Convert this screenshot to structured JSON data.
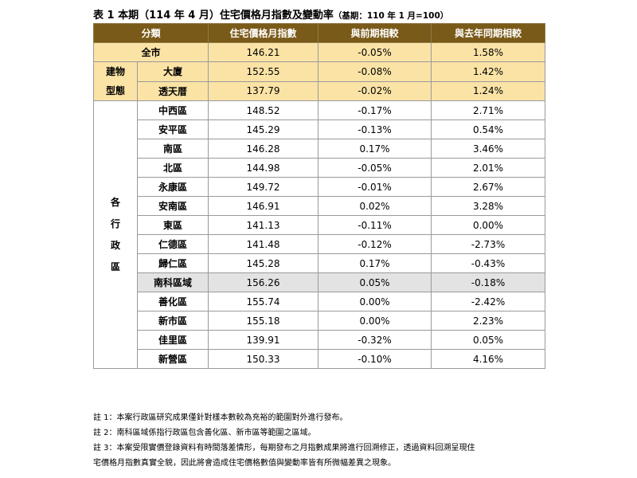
{
  "title": "表 1 本期（114 年 4 月）住宅價格月指數及變動率",
  "title_sub": "（基期：110 年 1 月=100）",
  "headers": [
    "分類",
    "住宅價格月指數",
    "與前期相較",
    "與去年同期相較"
  ],
  "overall": {
    "label": "全市",
    "index": "146.21",
    "mom": "-0.05%",
    "yoy": "1.58%"
  },
  "building_group": "建物\n型態",
  "building": [
    {
      "label": "大廈",
      "index": "152.55",
      "mom": "-0.08%",
      "yoy": "1.42%"
    },
    {
      "label": "透天厝",
      "index": "137.79",
      "mom": "-0.02%",
      "yoy": "1.24%"
    }
  ],
  "district_group": "各\n行\n政\n區",
  "districts": [
    {
      "label": "中西區",
      "index": "148.52",
      "mom": "-0.17%",
      "yoy": "2.71%"
    },
    {
      "label": "安平區",
      "index": "145.29",
      "mom": "-0.13%",
      "yoy": "0.54%"
    },
    {
      "label": "南區",
      "index": "146.28",
      "mom": "0.17%",
      "yoy": "3.46%"
    },
    {
      "label": "北區",
      "index": "144.98",
      "mom": "-0.05%",
      "yoy": "2.01%"
    },
    {
      "label": "永康區",
      "index": "149.72",
      "mom": "-0.01%",
      "yoy": "2.67%"
    },
    {
      "label": "安南區",
      "index": "146.91",
      "mom": "0.02%",
      "yoy": "3.28%"
    },
    {
      "label": "東區",
      "index": "141.13",
      "mom": "-0.11%",
      "yoy": "0.00%"
    },
    {
      "label": "仁德區",
      "index": "141.48",
      "mom": "-0.12%",
      "yoy": "-2.73%"
    },
    {
      "label": "歸仁區",
      "index": "145.28",
      "mom": "0.17%",
      "yoy": "-0.43%"
    },
    {
      "label": "南科區域",
      "index": "156.26",
      "mom": "0.05%",
      "yoy": "-0.18%"
    },
    {
      "label": "善化區",
      "index": "155.74",
      "mom": "0.00%",
      "yoy": "-2.42%"
    },
    {
      "label": "新市區",
      "index": "155.18",
      "mom": "0.00%",
      "yoy": "2.23%"
    },
    {
      "label": "佳里區",
      "index": "139.91",
      "mom": "-0.32%",
      "yoy": "0.05%"
    },
    {
      "label": "新營區",
      "index": "150.33",
      "mom": "-0.10%",
      "yoy": "4.16%"
    }
  ],
  "notes": [
    "註 1：本案行政區研究成果僅針對樣本數較為充裕的範圍對外進行發布。",
    "註 2：南科區域係指行政區包含善化區、新市區等範圍之區域。",
    "註 3：本案受限實價登錄資料有時間落差情形，每期發布之月指數成果將進行回溯修正，透過資料回溯呈現住",
    "宅價格月指數真實全貌，因此將會造成住宅價格數值與變動率皆有所微幅差異之現象。"
  ],
  "colors": {
    "header_bg": "#7a5a18",
    "highlight_bg": "#fbe3a6",
    "gray_bg": "#e3e3e3"
  }
}
